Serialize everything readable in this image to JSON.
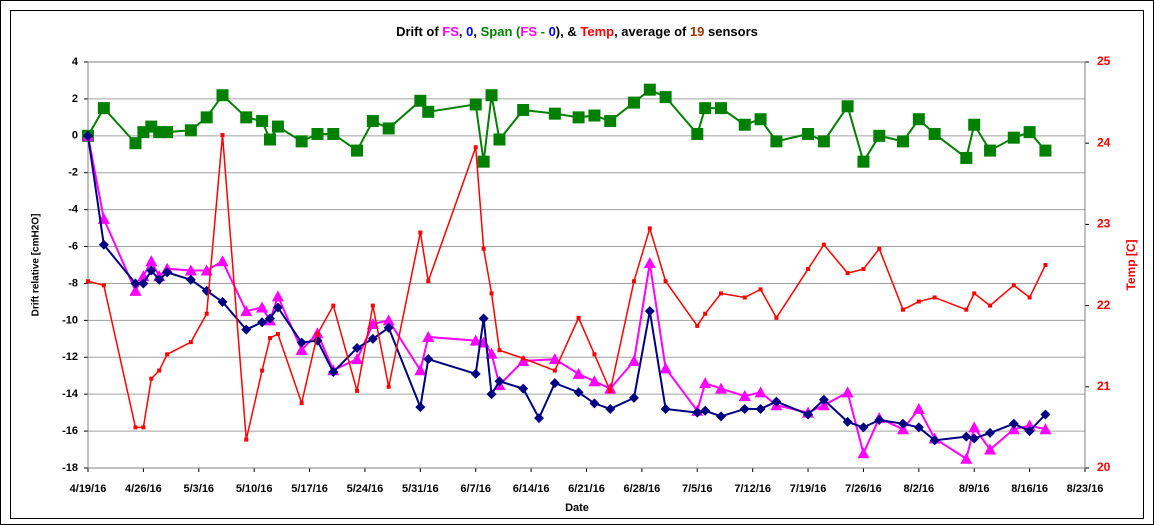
{
  "chart_data": {
    "type": "line",
    "title_parts": [
      {
        "text": "Drift of ",
        "color": "#000000"
      },
      {
        "text": "FS",
        "color": "#ff00ff"
      },
      {
        "text": ", ",
        "color": "#000000"
      },
      {
        "text": "0",
        "color": "#0000ff"
      },
      {
        "text": ", ",
        "color": "#000000"
      },
      {
        "text": "Span",
        "color": "#008000"
      },
      {
        "text": " (",
        "color": "#008000"
      },
      {
        "text": "FS",
        "color": "#ff00ff"
      },
      {
        "text": " - ",
        "color": "#008000"
      },
      {
        "text": "0",
        "color": "#0000ff"
      },
      {
        "text": "), & ",
        "color": "#000000"
      },
      {
        "text": "Temp",
        "color": "#ff0000"
      },
      {
        "text": ", average of ",
        "color": "#000000"
      },
      {
        "text": "19",
        "color": "#993300"
      },
      {
        "text": " sensors",
        "color": "#000000"
      }
    ],
    "x_label": "Date",
    "y_label": "Drift relative [cmH2O]",
    "y2_label": "Temp [C]",
    "xlim": [
      "4/19/16",
      "8/23/16"
    ],
    "xticks": [
      "4/19/16",
      "4/26/16",
      "5/3/16",
      "5/10/16",
      "5/17/16",
      "5/24/16",
      "5/31/16",
      "6/7/16",
      "6/14/16",
      "6/21/16",
      "6/28/16",
      "7/5/16",
      "7/12/16",
      "7/19/16",
      "7/26/16",
      "8/2/16",
      "8/9/16",
      "8/16/16",
      "8/23/16"
    ],
    "ylim": [
      -18,
      4
    ],
    "yticks": [
      -18,
      -16,
      -14,
      -12,
      -10,
      -8,
      -6,
      -4,
      -2,
      0,
      2,
      4
    ],
    "y2lim": [
      20,
      25
    ],
    "y2ticks": [
      20,
      21,
      22,
      23,
      24,
      25
    ],
    "y2_color": "#ff0000",
    "grid": true,
    "series": [
      {
        "color": "#000080",
        "marker": "diamond",
        "axis": "y",
        "x": [
          "4/19/16",
          "4/21/16",
          "4/25/16",
          "4/26/16",
          "4/27/16",
          "4/28/16",
          "4/29/16",
          "5/2/16",
          "5/4/16",
          "5/6/16",
          "5/9/16",
          "5/11/16",
          "5/12/16",
          "5/13/16",
          "5/16/16",
          "5/18/16",
          "5/20/16",
          "5/23/16",
          "5/25/16",
          "5/27/16",
          "5/31/16",
          "6/1/16",
          "6/7/16",
          "6/8/16",
          "6/9/16",
          "6/10/16",
          "6/13/16",
          "6/15/16",
          "6/17/16",
          "6/20/16",
          "6/22/16",
          "6/24/16",
          "6/27/16",
          "6/29/16",
          "7/1/16",
          "7/5/16",
          "7/6/16",
          "7/8/16",
          "7/11/16",
          "7/13/16",
          "7/15/16",
          "7/19/16",
          "7/21/16",
          "7/24/16",
          "7/26/16",
          "7/28/16",
          "7/31/16",
          "8/2/16",
          "8/4/16",
          "8/8/16",
          "8/9/16",
          "8/11/16",
          "8/14/16",
          "8/16/16",
          "8/18/16"
        ],
        "values": [
          0,
          -5.9,
          -8.0,
          -8.0,
          -7.3,
          -7.8,
          -7.4,
          -7.8,
          -8.4,
          -9.0,
          -10.5,
          -10.1,
          -9.9,
          -9.3,
          -11.2,
          -11.1,
          -12.8,
          -11.5,
          -11.0,
          -10.4,
          -14.7,
          -12.1,
          -12.9,
          -9.9,
          -14.0,
          -13.3,
          -13.7,
          -15.3,
          -13.4,
          -13.9,
          -14.5,
          -14.8,
          -14.2,
          -9.5,
          -14.8,
          -15.0,
          -14.9,
          -15.2,
          -14.8,
          -14.8,
          -14.4,
          -15.1,
          -14.3,
          -15.5,
          -15.8,
          -15.4,
          -15.6,
          -15.8,
          -16.5,
          -16.3,
          -16.4,
          -16.1,
          -15.6,
          -16.0,
          -15.1
        ]
      },
      {
        "color": "#ff00ff",
        "marker": "triangle",
        "axis": "y",
        "x": [
          "4/19/16",
          "4/21/16",
          "4/25/16",
          "4/26/16",
          "4/27/16",
          "4/28/16",
          "4/29/16",
          "5/2/16",
          "5/4/16",
          "5/6/16",
          "5/9/16",
          "5/11/16",
          "5/12/16",
          "5/13/16",
          "5/16/16",
          "5/18/16",
          "5/20/16",
          "5/23/16",
          "5/25/16",
          "5/27/16",
          "5/31/16",
          "6/1/16",
          "6/7/16",
          "6/8/16",
          "6/9/16",
          "6/10/16",
          "6/13/16",
          "6/17/16",
          "6/20/16",
          "6/22/16",
          "6/24/16",
          "6/27/16",
          "6/29/16",
          "7/1/16",
          "7/5/16",
          "7/6/16",
          "7/8/16",
          "7/11/16",
          "7/13/16",
          "7/15/16",
          "7/19/16",
          "7/21/16",
          "7/24/16",
          "7/26/16",
          "7/28/16",
          "7/31/16",
          "8/2/16",
          "8/4/16",
          "8/8/16",
          "8/9/16",
          "8/11/16",
          "8/14/16",
          "8/16/16",
          "8/18/16"
        ],
        "values": [
          0,
          -4.5,
          -8.4,
          -7.6,
          -6.8,
          -7.6,
          -7.2,
          -7.3,
          -7.3,
          -6.8,
          -9.5,
          -9.3,
          -10.0,
          -8.7,
          -11.6,
          -10.7,
          -12.7,
          -12.1,
          -10.2,
          -10.0,
          -12.7,
          -10.9,
          -11.1,
          -11.2,
          -11.8,
          -13.5,
          -12.2,
          -12.1,
          -12.9,
          -13.3,
          -13.7,
          -12.2,
          -6.9,
          -12.6,
          -14.9,
          -13.4,
          -13.7,
          -14.1,
          -13.9,
          -14.6,
          -15.0,
          -14.6,
          -13.9,
          -17.2,
          -15.3,
          -15.9,
          -14.8,
          -16.4,
          -17.5,
          -15.8,
          -17.0,
          -15.9,
          -15.7,
          -15.9
        ]
      },
      {
        "color": "#008000",
        "marker": "square",
        "axis": "y",
        "x": [
          "4/19/16",
          "4/21/16",
          "4/25/16",
          "4/26/16",
          "4/27/16",
          "4/28/16",
          "4/29/16",
          "5/2/16",
          "5/4/16",
          "5/6/16",
          "5/9/16",
          "5/11/16",
          "5/12/16",
          "5/13/16",
          "5/16/16",
          "5/18/16",
          "5/20/16",
          "5/23/16",
          "5/25/16",
          "5/27/16",
          "5/31/16",
          "6/1/16",
          "6/7/16",
          "6/8/16",
          "6/9/16",
          "6/10/16",
          "6/13/16",
          "6/17/16",
          "6/20/16",
          "6/22/16",
          "6/24/16",
          "6/27/16",
          "6/29/16",
          "7/1/16",
          "7/5/16",
          "7/6/16",
          "7/8/16",
          "7/11/16",
          "7/13/16",
          "7/15/16",
          "7/19/16",
          "7/21/16",
          "7/24/16",
          "7/26/16",
          "7/28/16",
          "7/31/16",
          "8/2/16",
          "8/4/16",
          "8/8/16",
          "8/9/16",
          "8/11/16",
          "8/14/16",
          "8/16/16",
          "8/18/16"
        ],
        "values": [
          0,
          1.5,
          -0.4,
          0.2,
          0.5,
          0.2,
          0.2,
          0.3,
          1.0,
          2.2,
          1.0,
          0.8,
          -0.2,
          0.5,
          -0.3,
          0.1,
          0.1,
          -0.8,
          0.8,
          0.4,
          1.9,
          1.3,
          1.7,
          -1.4,
          2.2,
          -0.2,
          1.4,
          1.2,
          1.0,
          1.1,
          0.8,
          1.8,
          2.5,
          2.1,
          0.1,
          1.5,
          1.5,
          0.6,
          0.9,
          -0.3,
          0.1,
          -0.3,
          1.6,
          -1.4,
          0.0,
          -0.3,
          0.9,
          0.1,
          -1.2,
          0.6,
          -0.8,
          -0.1,
          0.2,
          -0.8
        ]
      },
      {
        "color": "#ff0000",
        "marker": "small-square",
        "axis": "y2",
        "x": [
          "4/19/16",
          "4/21/16",
          "4/25/16",
          "4/26/16",
          "4/27/16",
          "4/28/16",
          "4/29/16",
          "5/2/16",
          "5/4/16",
          "5/6/16",
          "5/9/16",
          "5/11/16",
          "5/12/16",
          "5/13/16",
          "5/16/16",
          "5/18/16",
          "5/20/16",
          "5/23/16",
          "5/25/16",
          "5/27/16",
          "5/31/16",
          "6/1/16",
          "6/7/16",
          "6/8/16",
          "6/9/16",
          "6/10/16",
          "6/13/16",
          "6/17/16",
          "6/20/16",
          "6/22/16",
          "6/24/16",
          "6/27/16",
          "6/29/16",
          "7/1/16",
          "7/5/16",
          "7/6/16",
          "7/8/16",
          "7/11/16",
          "7/13/16",
          "7/15/16",
          "7/19/16",
          "7/21/16",
          "7/24/16",
          "7/26/16",
          "7/28/16",
          "7/31/16",
          "8/2/16",
          "8/4/16",
          "8/8/16",
          "8/9/16",
          "8/11/16",
          "8/14/16",
          "8/16/16",
          "8/18/16"
        ],
        "values": [
          22.3,
          22.25,
          20.5,
          20.5,
          21.1,
          21.2,
          21.4,
          21.55,
          21.9,
          24.1,
          20.35,
          21.2,
          21.6,
          21.65,
          20.8,
          21.65,
          22.0,
          20.95,
          22.0,
          21.0,
          22.9,
          22.3,
          23.95,
          22.7,
          22.15,
          21.45,
          21.35,
          21.2,
          21.85,
          21.4,
          20.95,
          22.3,
          22.95,
          22.3,
          21.75,
          21.9,
          22.15,
          22.1,
          22.2,
          21.85,
          22.45,
          22.75,
          22.4,
          22.45,
          22.7,
          21.95,
          22.05,
          22.1,
          21.95,
          22.15,
          22.0,
          22.25,
          22.1,
          22.5
        ]
      }
    ]
  }
}
